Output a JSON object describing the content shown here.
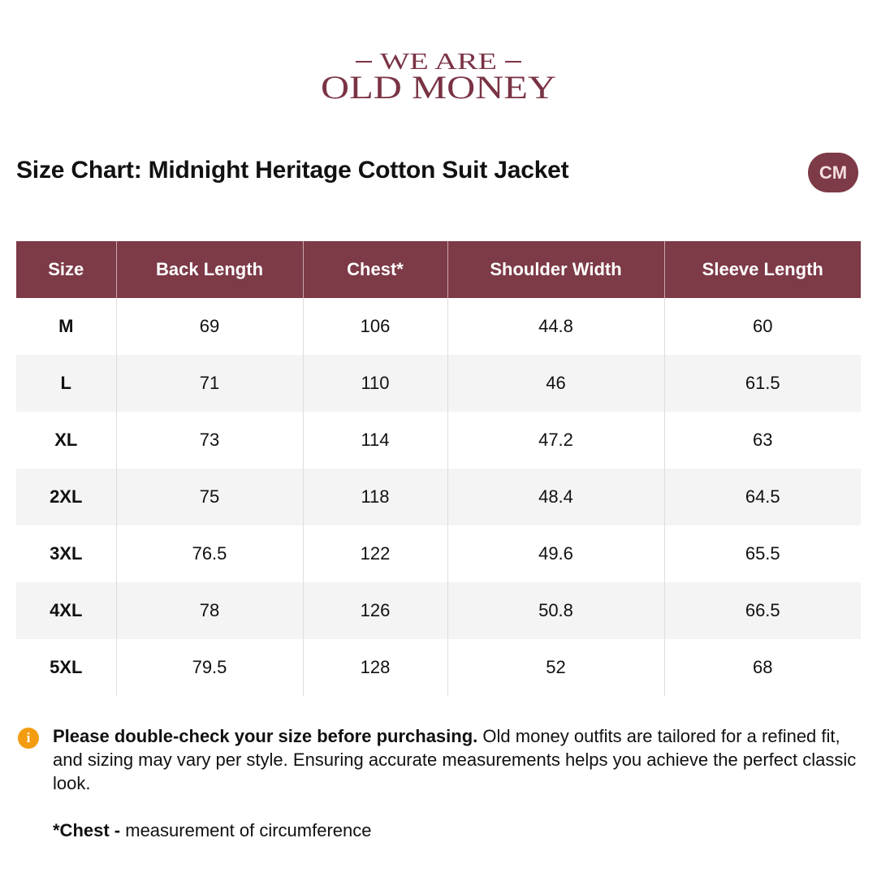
{
  "logo": {
    "top": "WE ARE",
    "bottom": "OLD MONEY"
  },
  "title": "Size Chart: Midnight Heritage Cotton Suit Jacket",
  "unit": "CM",
  "table": {
    "headers": [
      "Size",
      "Back Length",
      "Chest*",
      "Shoulder Width",
      "Sleeve Length"
    ],
    "rows": [
      [
        "M",
        69,
        106,
        44.8,
        60
      ],
      [
        "L",
        71,
        110,
        46,
        61.5
      ],
      [
        "XL",
        73,
        114,
        47.2,
        63
      ],
      [
        "2XL",
        75,
        118,
        48.4,
        64.5
      ],
      [
        "3XL",
        76.5,
        122,
        49.6,
        65.5
      ],
      [
        "4XL",
        78,
        126,
        50.8,
        66.5
      ],
      [
        "5XL",
        79.5,
        128,
        52,
        68
      ]
    ]
  },
  "notice": {
    "bold": "Please double-check your size before purchasing.",
    "text": "Old money outfits are tailored for a refined fit, and sizing may vary per style. Ensuring accurate measurements helps you achieve the perfect classic look."
  },
  "footnote": {
    "bold": "*Chest -",
    "text": "measurement of circumference"
  }
}
